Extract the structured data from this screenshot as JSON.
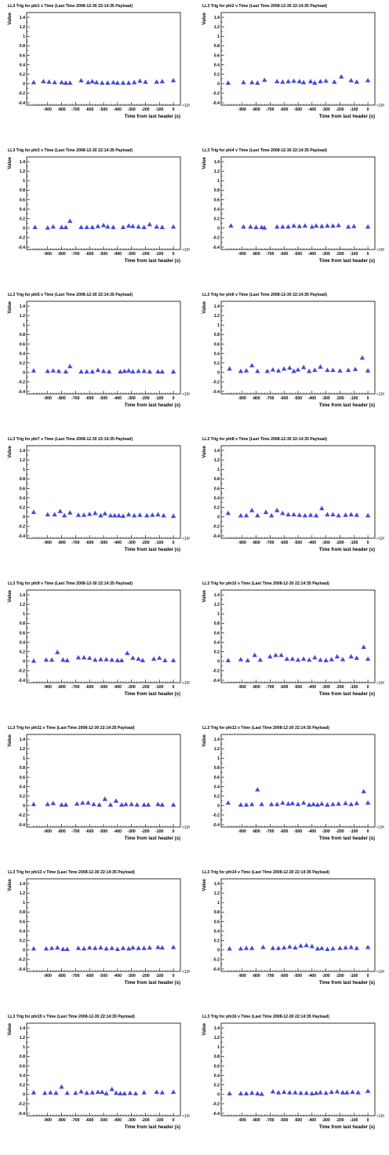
{
  "marker_color": "#4a4ad6",
  "axis_color": "#000000",
  "chart_data": [
    {
      "type": "scatter",
      "title": "LL3 Trig for phi1 v Time (Last Time 2008-12-30 22:14:35 Payload)",
      "xlabel": "Time from last header (s)",
      "ylabel": "Value",
      "x_multiplier": "×10³",
      "xlim": [
        -1050,
        50
      ],
      "ylim": [
        -0.45,
        1.5
      ],
      "x": [
        -1000,
        -930,
        -890,
        -850,
        -800,
        -770,
        -740,
        -660,
        -610,
        -580,
        -550,
        -510,
        -470,
        -430,
        -400,
        -360,
        -320,
        -280,
        -240,
        -200,
        -120,
        -80,
        0
      ],
      "y": [
        0.03,
        0.05,
        0.04,
        0.03,
        0.03,
        0.02,
        0.02,
        0.07,
        0.03,
        0.05,
        0.03,
        0.02,
        0.02,
        0.03,
        0.02,
        0.02,
        0.02,
        0.03,
        0.06,
        0.04,
        0.04,
        0.05,
        0.07
      ]
    },
    {
      "type": "scatter",
      "title": "LL3 Trig for phi2 v Time (Last Time 2008-12-30 22:14:35 Payload)",
      "xlabel": "Time from last header (s)",
      "ylabel": "Value",
      "x_multiplier": "×10³",
      "xlim": [
        -1050,
        50
      ],
      "ylim": [
        -0.45,
        1.5
      ],
      "x": [
        -1000,
        -890,
        -830,
        -790,
        -740,
        -650,
        -610,
        -570,
        -530,
        -490,
        -460,
        -410,
        -380,
        -340,
        -300,
        -240,
        -190,
        -120,
        -80,
        0
      ],
      "y": [
        0.02,
        0.03,
        0.03,
        0.02,
        0.08,
        0.05,
        0.04,
        0.05,
        0.06,
        0.05,
        0.03,
        0.05,
        0.02,
        0.05,
        0.06,
        0.04,
        0.15,
        0.07,
        0.04,
        0.07
      ]
    },
    {
      "type": "scatter",
      "title": "LL3 Trig for phi3 v Time (Last Time 2008-12-30 22:14:35 Payload)",
      "xlabel": "Time from last header (s)",
      "ylabel": "Value",
      "x_multiplier": "×10³",
      "xlim": [
        -1050,
        50
      ],
      "ylim": [
        -0.45,
        1.5
      ],
      "x": [
        -990,
        -900,
        -860,
        -800,
        -770,
        -740,
        -660,
        -620,
        -580,
        -540,
        -500,
        -470,
        -430,
        -360,
        -320,
        -290,
        -250,
        -210,
        -170,
        -120,
        -80,
        0
      ],
      "y": [
        0.02,
        0.01,
        0.03,
        0.02,
        0.02,
        0.15,
        0.02,
        0.02,
        0.02,
        0.04,
        0.06,
        0.03,
        0.02,
        0.02,
        0.05,
        0.04,
        0.03,
        0.02,
        0.08,
        0.03,
        0.02,
        0.03
      ]
    },
    {
      "type": "scatter",
      "title": "LL3 Trig for phi4 v Time (Last Time 2008-12-30 22:14:35 Payload)",
      "xlabel": "Time from last header (s)",
      "ylabel": "Value",
      "x_multiplier": "×10³",
      "xlim": [
        -1050,
        50
      ],
      "ylim": [
        -0.45,
        1.5
      ],
      "x": [
        -980,
        -890,
        -840,
        -800,
        -760,
        -740,
        -650,
        -610,
        -570,
        -530,
        -490,
        -450,
        -400,
        -370,
        -330,
        -290,
        -250,
        -210,
        -140,
        -100,
        0
      ],
      "y": [
        0.05,
        0.03,
        0.03,
        0.02,
        0.02,
        0.01,
        0.03,
        0.03,
        0.03,
        0.05,
        0.04,
        0.05,
        0.03,
        0.05,
        0.04,
        0.05,
        0.05,
        0.06,
        0.03,
        0.04,
        0.03
      ]
    },
    {
      "type": "scatter",
      "title": "LL3 Trig for phi5 v Time (Last Time 2008-12-30 22:14:35 Payload)",
      "xlabel": "Time from last header (s)",
      "ylabel": "Value",
      "x_multiplier": "×10³",
      "xlim": [
        -1050,
        50
      ],
      "ylim": [
        -0.45,
        1.5
      ],
      "x": [
        -1000,
        -900,
        -860,
        -820,
        -770,
        -740,
        -660,
        -620,
        -580,
        -540,
        -500,
        -460,
        -380,
        -350,
        -320,
        -290,
        -250,
        -210,
        -170,
        -110,
        -80,
        0
      ],
      "y": [
        0.04,
        0.03,
        0.04,
        0.03,
        0.02,
        0.13,
        0.02,
        0.02,
        0.02,
        0.05,
        0.03,
        0.02,
        0.02,
        0.03,
        0.04,
        0.02,
        0.03,
        0.03,
        0.02,
        0.02,
        0.02,
        0.02
      ]
    },
    {
      "type": "scatter",
      "title": "LL3 Trig for phi6 v Time (Last Time 2008-12-30 22:14:35 Payload)",
      "xlabel": "Time from last header (s)",
      "ylabel": "Value",
      "x_multiplier": "×10³",
      "xlim": [
        -1050,
        50
      ],
      "ylim": [
        -0.45,
        1.5
      ],
      "x": [
        -990,
        -910,
        -870,
        -830,
        -790,
        -720,
        -680,
        -640,
        -600,
        -560,
        -530,
        -500,
        -460,
        -420,
        -380,
        -340,
        -290,
        -250,
        -200,
        -140,
        -90,
        -40,
        0
      ],
      "y": [
        0.08,
        0.03,
        0.04,
        0.15,
        0.03,
        0.03,
        0.06,
        0.04,
        0.08,
        0.1,
        0.03,
        0.06,
        0.11,
        0.03,
        0.05,
        0.12,
        0.05,
        0.05,
        0.04,
        0.05,
        0.07,
        0.31,
        0.04
      ]
    },
    {
      "type": "scatter",
      "title": "LL3 Trig for phi7 v Time (Last Time 2008-12-30 22:14:35 Payload)",
      "xlabel": "Time from last header (s)",
      "ylabel": "Value",
      "x_multiplier": "×10³",
      "xlim": [
        -1050,
        50
      ],
      "ylim": [
        -0.45,
        1.5
      ],
      "x": [
        -1000,
        -900,
        -850,
        -810,
        -780,
        -740,
        -680,
        -640,
        -600,
        -560,
        -520,
        -490,
        -450,
        -420,
        -390,
        -360,
        -320,
        -280,
        -240,
        -190,
        -150,
        -110,
        -70,
        0
      ],
      "y": [
        0.1,
        0.05,
        0.05,
        0.12,
        0.03,
        0.09,
        0.04,
        0.04,
        0.06,
        0.08,
        0.03,
        0.07,
        0.03,
        0.03,
        0.03,
        0.02,
        0.05,
        0.03,
        0.04,
        0.03,
        0.04,
        0.05,
        0.03,
        0.02
      ]
    },
    {
      "type": "scatter",
      "title": "LL3 Trig for phi8 v Time (Last Time 2008-12-30 22:14:35 Payload)",
      "xlabel": "Time from last header (s)",
      "ylabel": "Value",
      "x_multiplier": "×10³",
      "xlim": [
        -1050,
        50
      ],
      "ylim": [
        -0.45,
        1.5
      ],
      "x": [
        -1000,
        -910,
        -870,
        -830,
        -790,
        -730,
        -690,
        -650,
        -610,
        -570,
        -530,
        -490,
        -450,
        -410,
        -370,
        -330,
        -290,
        -250,
        -210,
        -160,
        -120,
        -80,
        0
      ],
      "y": [
        0.08,
        0.03,
        0.03,
        0.14,
        0.03,
        0.1,
        0.03,
        0.14,
        0.08,
        0.05,
        0.05,
        0.04,
        0.03,
        0.04,
        0.03,
        0.18,
        0.05,
        0.05,
        0.03,
        0.04,
        0.05,
        0.04,
        0.03
      ]
    },
    {
      "type": "scatter",
      "title": "LL3 Trig for phi9 v Time (Last Time 2008-12-30 22:14:35 Payload)",
      "xlabel": "Time from last header (s)",
      "ylabel": "Value",
      "x_multiplier": "×10³",
      "xlim": [
        -1050,
        50
      ],
      "ylim": [
        -0.45,
        1.5
      ],
      "x": [
        -1000,
        -910,
        -870,
        -830,
        -790,
        -760,
        -680,
        -640,
        -600,
        -560,
        -520,
        -480,
        -440,
        -400,
        -370,
        -330,
        -290,
        -250,
        -220,
        -140,
        -100,
        -60,
        0
      ],
      "y": [
        0.01,
        0.03,
        0.03,
        0.19,
        0.03,
        0.02,
        0.08,
        0.08,
        0.07,
        0.03,
        0.04,
        0.04,
        0.03,
        0.02,
        0.02,
        0.17,
        0.07,
        0.05,
        0.02,
        0.05,
        0.07,
        0.02,
        0.02
      ]
    },
    {
      "type": "scatter",
      "title": "LL3 Trig for phi10 v Time (Last Time 2008-12-30 22:14:35 Payload)",
      "xlabel": "Time from last header (s)",
      "ylabel": "Value",
      "x_multiplier": "×10³",
      "xlim": [
        -1050,
        50
      ],
      "ylim": [
        -0.45,
        1.5
      ],
      "x": [
        -1000,
        -910,
        -860,
        -810,
        -770,
        -700,
        -660,
        -620,
        -580,
        -540,
        -500,
        -460,
        -420,
        -380,
        -340,
        -300,
        -260,
        -220,
        -180,
        -120,
        -80,
        -30,
        0
      ],
      "y": [
        0.02,
        0.04,
        0.02,
        0.13,
        0.03,
        0.1,
        0.13,
        0.13,
        0.05,
        0.05,
        0.03,
        0.05,
        0.03,
        0.08,
        0.03,
        0.02,
        0.04,
        0.1,
        0.04,
        0.1,
        0.07,
        0.3,
        0.05
      ]
    },
    {
      "type": "scatter",
      "title": "LL3 Trig for phi11 v Time (Last Time 2008-12-30 22:14:35 Payload)",
      "xlabel": "Time from last header (s)",
      "ylabel": "Value",
      "x_multiplier": "×10³",
      "xlim": [
        -1050,
        50
      ],
      "ylim": [
        -0.45,
        1.5
      ],
      "x": [
        -1000,
        -900,
        -860,
        -800,
        -770,
        -690,
        -650,
        -610,
        -570,
        -530,
        -490,
        -450,
        -410,
        -370,
        -340,
        -300,
        -260,
        -210,
        -180,
        -110,
        -80,
        0
      ],
      "y": [
        0.03,
        0.03,
        0.05,
        0.02,
        0.02,
        0.04,
        0.06,
        0.06,
        0.03,
        0.02,
        0.14,
        0.02,
        0.1,
        0.02,
        0.03,
        0.03,
        0.02,
        0.02,
        0.02,
        0.03,
        0.02,
        0.02
      ]
    },
    {
      "type": "scatter",
      "title": "LL3 Trig for phi12 v Time (Last Time 2008-12-30 22:14:35 Payload)",
      "xlabel": "Time from last header (s)",
      "ylabel": "Value",
      "x_multiplier": "×10³",
      "xlim": [
        -1050,
        50
      ],
      "ylim": [
        -0.45,
        1.5
      ],
      "x": [
        -1000,
        -910,
        -870,
        -830,
        -790,
        -760,
        -690,
        -650,
        -610,
        -570,
        -540,
        -500,
        -460,
        -420,
        -390,
        -360,
        -330,
        -290,
        -250,
        -210,
        -160,
        -120,
        -80,
        -30,
        0
      ],
      "y": [
        0.06,
        0.02,
        0.02,
        0.03,
        0.34,
        0.03,
        0.03,
        0.03,
        0.06,
        0.04,
        0.05,
        0.03,
        0.06,
        0.02,
        0.03,
        0.02,
        0.04,
        0.02,
        0.03,
        0.04,
        0.05,
        0.03,
        0.05,
        0.3,
        0.06
      ]
    },
    {
      "type": "scatter",
      "title": "LL3 Trig for phi13 v Time (Last Time 2008-12-30 22:14:35 Payload)",
      "xlabel": "Time from last header (s)",
      "ylabel": "Value",
      "x_multiplier": "×10³",
      "xlim": [
        -1050,
        50
      ],
      "ylim": [
        -0.45,
        1.5
      ],
      "x": [
        -1000,
        -910,
        -870,
        -830,
        -790,
        -760,
        -680,
        -640,
        -600,
        -560,
        -520,
        -480,
        -440,
        -400,
        -360,
        -320,
        -290,
        -250,
        -210,
        -170,
        -110,
        -80,
        0
      ],
      "y": [
        0.03,
        0.03,
        0.04,
        0.05,
        0.02,
        0.02,
        0.04,
        0.03,
        0.05,
        0.04,
        0.05,
        0.03,
        0.04,
        0.02,
        0.04,
        0.03,
        0.05,
        0.04,
        0.04,
        0.05,
        0.06,
        0.05,
        0.06
      ]
    },
    {
      "type": "scatter",
      "title": "LL3 Trig for phi14 v Time (Last Time 2008-12-30 22:14:35 Payload)",
      "xlabel": "Time from last header (s)",
      "ylabel": "Value",
      "x_multiplier": "×10³",
      "xlim": [
        -1050,
        50
      ],
      "ylim": [
        -0.45,
        1.5
      ],
      "x": [
        -990,
        -910,
        -870,
        -830,
        -750,
        -680,
        -640,
        -600,
        -560,
        -520,
        -480,
        -440,
        -400,
        -360,
        -330,
        -290,
        -250,
        -200,
        -160,
        -120,
        -80,
        0
      ],
      "y": [
        0.03,
        0.03,
        0.04,
        0.04,
        0.06,
        0.04,
        0.04,
        0.05,
        0.07,
        0.05,
        0.09,
        0.1,
        0.08,
        0.03,
        0.04,
        0.02,
        0.03,
        0.04,
        0.05,
        0.06,
        0.04,
        0.06
      ]
    },
    {
      "type": "scatter",
      "title": "LL3 Trig for phi15 v Time (Last Time 2008-12-30 22:14:35 Payload)",
      "xlabel": "Time from last header (s)",
      "ylabel": "Value",
      "x_multiplier": "×10³",
      "xlim": [
        -1050,
        50
      ],
      "ylim": [
        -0.45,
        1.5
      ],
      "x": [
        -1000,
        -920,
        -880,
        -840,
        -800,
        -760,
        -700,
        -660,
        -620,
        -580,
        -540,
        -510,
        -480,
        -440,
        -410,
        -380,
        -350,
        -310,
        -270,
        -210,
        -120,
        -80,
        0
      ],
      "y": [
        0.04,
        0.03,
        0.04,
        0.03,
        0.16,
        0.03,
        0.03,
        0.06,
        0.03,
        0.04,
        0.05,
        0.05,
        0.02,
        0.11,
        0.03,
        0.02,
        0.02,
        0.03,
        0.02,
        0.04,
        0.05,
        0.04,
        0.05
      ]
    },
    {
      "type": "scatter",
      "title": "LL3 Trig for phi16 v Time (Last Time 2008-12-30 22:14:35 Payload)",
      "xlabel": "Time from last header (s)",
      "ylabel": "Value",
      "x_multiplier": "×10³",
      "xlim": [
        -1050,
        50
      ],
      "ylim": [
        -0.45,
        1.5
      ],
      "x": [
        -990,
        -910,
        -870,
        -830,
        -790,
        -760,
        -680,
        -640,
        -600,
        -560,
        -520,
        -480,
        -440,
        -400,
        -370,
        -340,
        -300,
        -260,
        -220,
        -180,
        -150,
        -110,
        -70,
        0
      ],
      "y": [
        0.02,
        0.02,
        0.02,
        0.03,
        0.02,
        0.01,
        0.06,
        0.04,
        0.05,
        0.04,
        0.04,
        0.03,
        0.03,
        0.02,
        0.03,
        0.04,
        0.03,
        0.05,
        0.06,
        0.04,
        0.04,
        0.05,
        0.04,
        0.07
      ]
    }
  ]
}
